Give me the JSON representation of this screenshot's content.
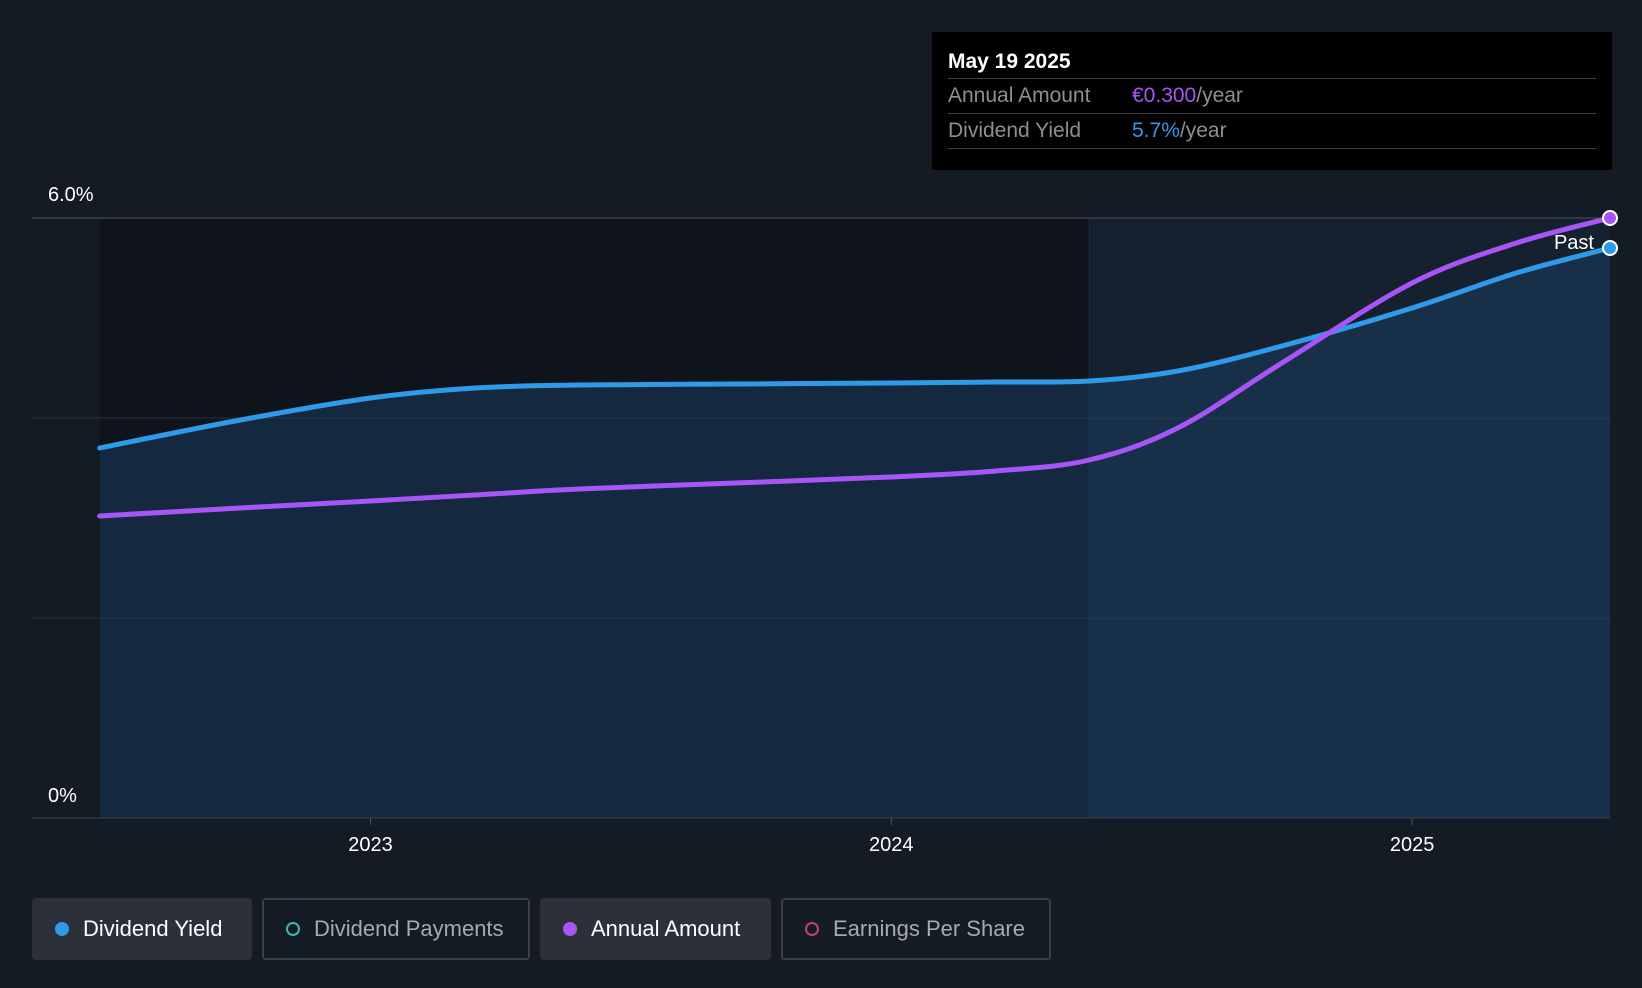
{
  "tooltip": {
    "date": "May 19 2025",
    "rows": [
      {
        "label": "Annual Amount",
        "value": "€0.300",
        "unit": "/year"
      },
      {
        "label": "Dividend Yield",
        "value": "5.7%",
        "unit": "/year"
      }
    ]
  },
  "legend": [
    {
      "label": "Dividend Yield",
      "color": "#2f9ae8",
      "active": true
    },
    {
      "label": "Dividend Payments",
      "color": "#3fb8a7",
      "active": false
    },
    {
      "label": "Annual Amount",
      "color": "#a855f7",
      "active": true
    },
    {
      "label": "Earnings Per Share",
      "color": "#c0407a",
      "active": false
    }
  ],
  "chart_data": {
    "type": "line",
    "y_axis_labels": [
      "6.0%",
      "0%"
    ],
    "ylim": [
      0,
      6.0
    ],
    "xlim": [
      2022.35,
      2025.38
    ],
    "x_ticks": [
      2023,
      2024,
      2025
    ],
    "x_tick_labels": [
      "2023",
      "2024",
      "2025"
    ],
    "past_label": "Past",
    "past_divider_x": 2024.38,
    "series": [
      {
        "name": "Dividend Yield",
        "color": "#2f9ae8",
        "x": [
          2022.48,
          2022.75,
          2023.0,
          2023.2,
          2023.4,
          2023.7,
          2024.0,
          2024.2,
          2024.38,
          2024.55,
          2024.75,
          2025.0,
          2025.2,
          2025.38
        ],
        "values": [
          3.7,
          3.98,
          4.2,
          4.3,
          4.33,
          4.34,
          4.35,
          4.36,
          4.37,
          4.47,
          4.72,
          5.1,
          5.45,
          5.7
        ]
      },
      {
        "name": "Annual Amount",
        "color": "#a855f7",
        "x": [
          2022.48,
          2022.75,
          2023.0,
          2023.2,
          2023.4,
          2023.7,
          2024.0,
          2024.2,
          2024.38,
          2024.55,
          2024.75,
          2025.0,
          2025.2,
          2025.38
        ],
        "values": [
          3.02,
          3.1,
          3.17,
          3.23,
          3.29,
          3.35,
          3.41,
          3.47,
          3.58,
          3.9,
          4.55,
          5.35,
          5.75,
          6.0
        ]
      }
    ]
  }
}
